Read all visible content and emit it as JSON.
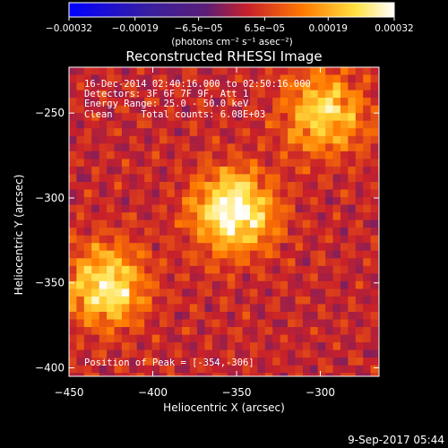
{
  "chart_data": {
    "type": "heatmap",
    "title": "Reconstructed RHESSI Image",
    "xlabel": "Heliocentric X (arcsec)",
    "ylabel": "Heliocentric Y (arcsec)",
    "xlim": [
      -450,
      -265
    ],
    "ylim": [
      -405,
      -223
    ],
    "x_ticks": [
      -450,
      -400,
      -350,
      -300
    ],
    "y_ticks": [
      -250,
      -300,
      -350,
      -400
    ],
    "x_tick_labels": [
      "−450",
      "−400",
      "−350",
      "−300"
    ],
    "y_tick_labels": [
      "−250",
      "−300",
      "−350",
      "−400"
    ],
    "colorbar": {
      "range": [
        -0.00032,
        0.00032
      ],
      "tick_values": [
        -0.00032,
        -0.00019,
        -6.5e-05,
        6.5e-05,
        0.00019,
        0.00032
      ],
      "tick_labels": [
        "−0.00032",
        "−0.00019",
        "−6.5e−05",
        "6.5e−05",
        "0.00019",
        "0.00032"
      ],
      "unit_label": "(photons cm⁻² s⁻¹ asec⁻²)",
      "colormap": [
        "#0000ff",
        "#3a1f9e",
        "#5a1e78",
        "#c8202a",
        "#ff7a00",
        "#ffe040",
        "#ffffff"
      ]
    },
    "annotations": [
      "16-Dec-2014 02:40:16.000 to 02:50:16.000",
      "Detectors: 3F 6F 7F 9F, Att 1",
      "Energy Range: 25.0 - 50.0 keV",
      "Clean     Total counts: 6.08E+03"
    ],
    "peak_label": "Position of Peak = [-354,-306]",
    "peak": [
      -354,
      -306
    ],
    "sources": [
      {
        "x": -354,
        "y": -306,
        "peak": 0.00032
      },
      {
        "x": -430,
        "y": -350,
        "peak": 0.00026
      },
      {
        "x": -300,
        "y": -248,
        "peak": 0.00022
      }
    ]
  },
  "footer": {
    "timestamp": "9-Sep-2017 05:44"
  }
}
